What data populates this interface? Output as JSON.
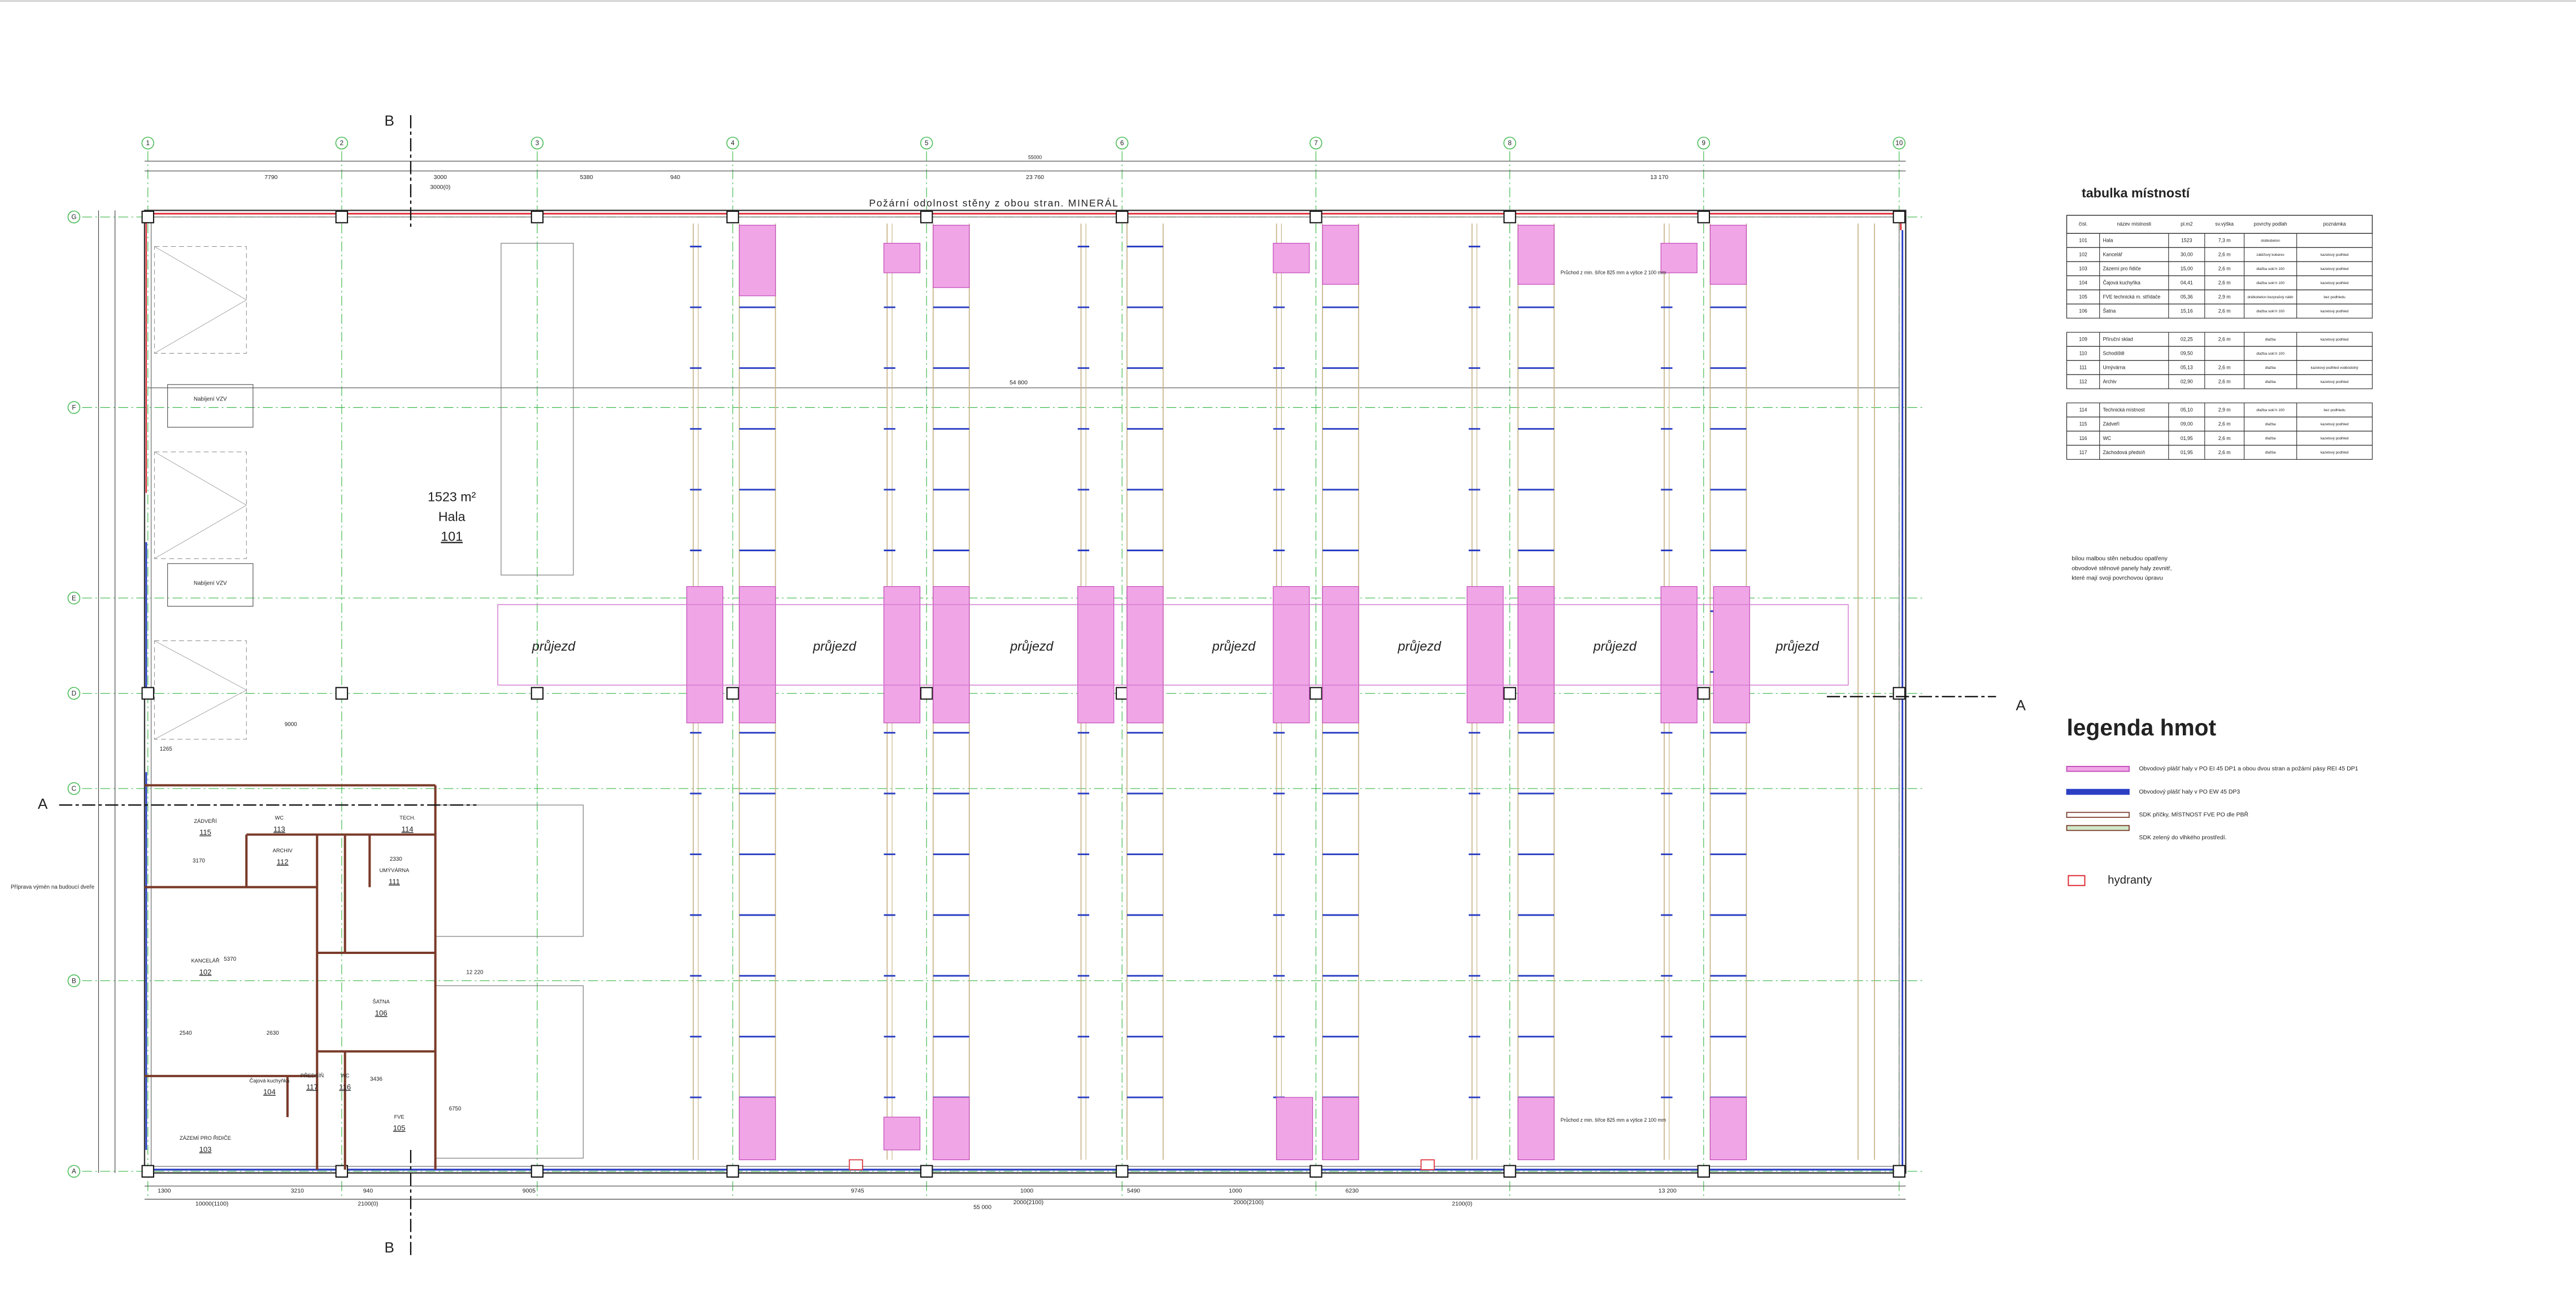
{
  "grid": {
    "columns": [
      "1",
      "2",
      "3",
      "4",
      "5",
      "6",
      "7",
      "8",
      "9",
      "10"
    ],
    "rows": [
      "G",
      "F",
      "E",
      "D",
      "C",
      "B",
      "A"
    ]
  },
  "title_banner": "Požární odolnost stěny z obou stran. MINERÁL",
  "hall": {
    "area": "1523 m²",
    "name": "Hala",
    "number": "101"
  },
  "passage_labels": [
    "průjezd",
    "průjezd",
    "průjezd",
    "průjezd",
    "průjezd",
    "průjezd",
    "průjezd"
  ],
  "dimensions": {
    "overall_top": "55000",
    "top": [
      "7790",
      "3000",
      "3000(0)",
      "5380",
      "940",
      "23 760",
      "13 170"
    ],
    "inner": "54 800",
    "bottom": [
      "1300",
      "3210",
      "940",
      "9005",
      "9745",
      "1000",
      "5490",
      "1000",
      "6230",
      "13 200"
    ],
    "bottom_second": [
      "10000(1100)",
      "2100(0)",
      "55 000",
      "2000(2100)",
      "2000(2100)",
      "2100(0)"
    ],
    "left": [
      "9000",
      "1265",
      "3170",
      "5370",
      "2540",
      "2630",
      "3436",
      "2330",
      "6750",
      "12 220"
    ]
  },
  "section_marks": [
    "B",
    "B",
    "A",
    "A"
  ],
  "side_notes": [
    "Nabíjení VZV",
    "Nabíjení VZV",
    "Příprava výmén na budoucí dveře",
    "Průchod z min. šířce 825 mm a výšce 2 100 mm",
    "Průchod z min. šířce 825 mm a výšce 2 100 mm"
  ],
  "rooms": [
    {
      "number": "115",
      "name": "ZÁDVEŘÍ"
    },
    {
      "number": "113",
      "name": "WC"
    },
    {
      "number": "112",
      "name": "ARCHIV"
    },
    {
      "number": "114",
      "name": "TECH."
    },
    {
      "number": "111",
      "name": "UMÝVÁRNA"
    },
    {
      "number": "102",
      "name": "KANCELÁŘ"
    },
    {
      "number": "106",
      "name": "ŠATNA"
    },
    {
      "number": "104",
      "name": "Čajová kuchyňka"
    },
    {
      "number": "117",
      "name": "PŘEDSÍŇ"
    },
    {
      "number": "116",
      "name": "WC"
    },
    {
      "number": "103",
      "name": "ZÁZEMÍ PRO ŘIDIČE"
    },
    {
      "number": "105",
      "name": "FVE"
    }
  ],
  "room_table": {
    "title": "tabulka místností",
    "headers": [
      "čísl.",
      "název místnosti",
      "pl.m2",
      "sv.výška",
      "povrchy podlah",
      "poznámka"
    ],
    "rows": [
      [
        "101",
        "Hala",
        "1523",
        "7,3 m",
        "drátkobeton",
        ""
      ],
      [
        "102",
        "Kancelář",
        "30,00",
        "2,6 m",
        "zátěžový koberec",
        "kazetový podhled"
      ],
      [
        "103",
        "Zázemí pro řidiče",
        "15,00",
        "2,6 m",
        "dlažba sokl h 100",
        "kazetový podhled"
      ],
      [
        "104",
        "Čajová kuchyňka",
        "04,41",
        "2,6 m",
        "dlažba sokl h 100",
        "kazetový podhled"
      ],
      [
        "105",
        "FVE technická m. střídače",
        "05,36",
        "2,9 m",
        "drátkobeton bezprašný nátěr",
        "bez podhledu"
      ],
      [
        "106",
        "Šatna",
        "15,16",
        "2,6 m",
        "dlažba sokl h 100",
        "kazetový podhled"
      ],
      [
        "109",
        "Příruční sklad",
        "02,25",
        "2,6 m",
        "dlažba",
        "kazetový podhled"
      ],
      [
        "110",
        "Schodiště",
        "09,50",
        "",
        "dlažba sokl h 100",
        ""
      ],
      [
        "111",
        "Umývárna",
        "05,13",
        "2,6 m",
        "dlažba",
        "kazetový podhled voděodolný"
      ],
      [
        "112",
        "Archiv",
        "02,90",
        "2,6 m",
        "dlažba",
        "kazetový podhled"
      ],
      [
        "114",
        "Technická místnost",
        "05,10",
        "2,9 m",
        "dlažba sokl h 100",
        "bez podhledu"
      ],
      [
        "115",
        "Zádveří",
        "09,00",
        "2,6 m",
        "dlažba",
        "kazetový podhled"
      ],
      [
        "116",
        "WC",
        "01,95",
        "2,6 m",
        "dlažba",
        "kazetový podhled"
      ],
      [
        "117",
        "Záchodová předsíň",
        "01,95",
        "2,6 m",
        "dlažba",
        "kazetový podhled"
      ]
    ]
  },
  "note": [
    "bílou malbou stěn nebudou opatřeny",
    "obvodové stěnové panely haly zevnitř,",
    "které mají svoji povrchovou úpravu"
  ],
  "legend": {
    "title": "legenda hmot",
    "items": [
      "Obvodový plášť haly v PO EI 45 DP1 a obou dvou stran a požární pásy REI 45 DP1",
      "Obvodový plášť haly v PO EW 45 DP3",
      "SDK příčky, MÍSTNOST FVE PO dle PBŘ",
      "SDK zelený do vlhkého prostředí."
    ],
    "hydrants": "hydranty"
  }
}
